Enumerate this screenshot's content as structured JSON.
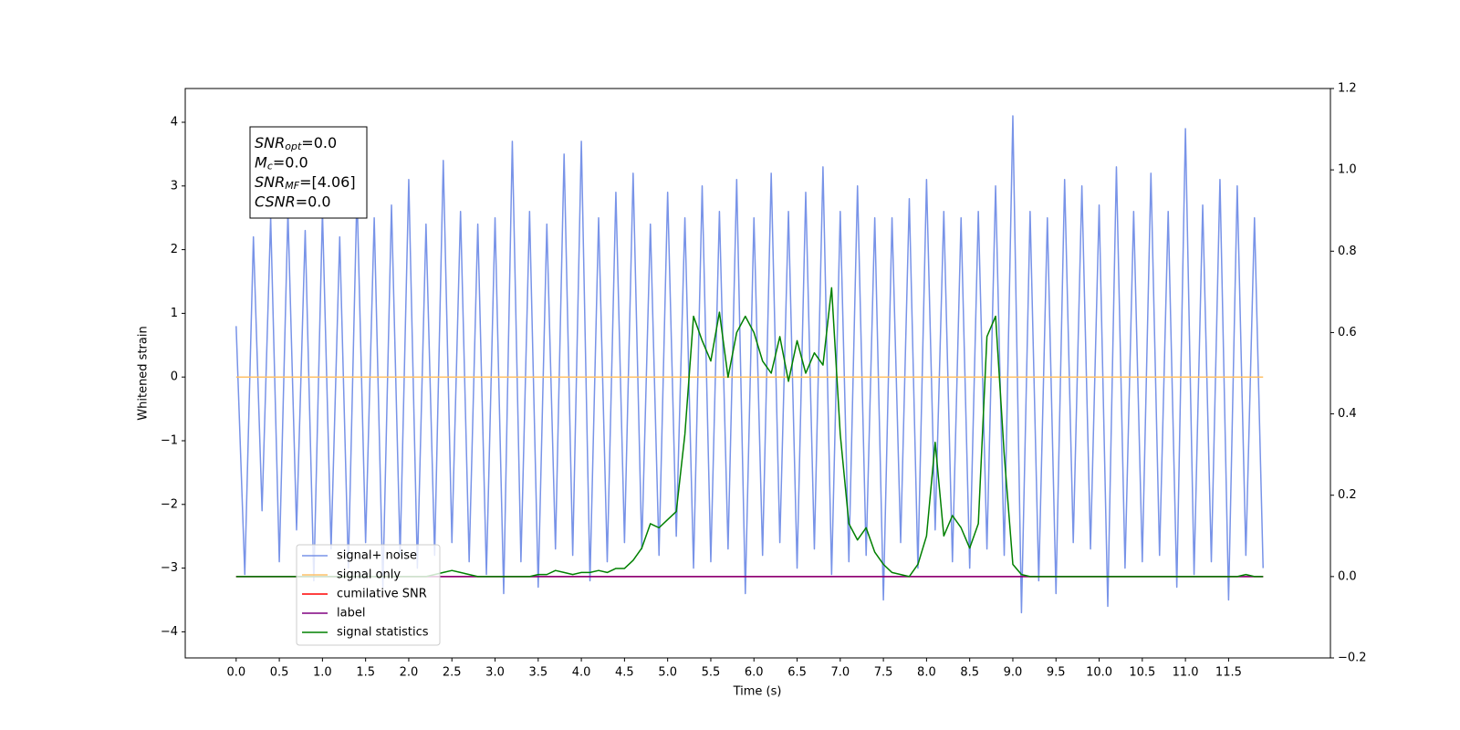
{
  "chart_data": {
    "type": "line",
    "xlabel": "Time (s)",
    "ylabel": "Whitened strain",
    "xlim": [
      -0.59,
      12.68
    ],
    "ylim": [
      -4.41,
      4.53
    ],
    "y2lim": [
      -0.2,
      1.2
    ],
    "xticks": [
      {
        "value": 0,
        "label": "0.0"
      },
      0.5,
      {
        "value": 1,
        "label": "1.0"
      },
      1.5,
      {
        "value": 2,
        "label": "2.0"
      },
      2.5,
      {
        "value": 3,
        "label": "3.0"
      },
      3.5,
      {
        "value": 4,
        "label": "4.0"
      },
      4.5,
      {
        "value": 5,
        "label": "5.0"
      },
      5.5,
      {
        "value": 6,
        "label": "6.0"
      },
      6.5,
      {
        "value": 7,
        "label": "7.0"
      },
      7.5,
      {
        "value": 8,
        "label": "8.0"
      },
      8.5,
      {
        "value": 9,
        "label": "9.0"
      },
      9.5,
      {
        "value": 10,
        "label": "10.0"
      },
      10.5,
      {
        "value": 11,
        "label": "11.0"
      },
      11.5
    ],
    "yticks": [
      {
        "value": -4,
        "label": "−4"
      },
      {
        "value": -3,
        "label": "−3"
      },
      {
        "value": -2,
        "label": "−2"
      },
      {
        "value": -1,
        "label": "−1"
      },
      0,
      1,
      2,
      3,
      4
    ],
    "y2ticks": [
      {
        "value": -0.2,
        "label": "−0.2"
      },
      {
        "value": 0,
        "label": "0.0"
      },
      0.2,
      0.4,
      0.6,
      0.8,
      {
        "value": 1,
        "label": "1.0"
      },
      1.2
    ],
    "legend": "lower left",
    "annotation": [
      {
        "symbol": "SNR",
        "subscript": "opt",
        "text": "=0.0"
      },
      {
        "symbol": "M",
        "subscript": "c",
        "text": "=0.0"
      },
      {
        "symbol": "SNR",
        "subscript": "MF",
        "text": "=[4.06]"
      },
      {
        "symbol": "CSNR",
        "text": "=0.0"
      }
    ],
    "x": [
      0.0,
      0.1,
      0.2,
      0.3,
      0.4,
      0.5,
      0.6,
      0.7,
      0.8,
      0.9,
      1.0,
      1.1,
      1.2,
      1.3,
      1.4,
      1.5,
      1.6,
      1.7,
      1.8,
      1.9,
      2.0,
      2.1,
      2.2,
      2.3,
      2.4,
      2.5,
      2.6,
      2.7,
      2.8,
      2.9,
      3.0,
      3.1,
      3.2,
      3.3,
      3.4,
      3.5,
      3.6,
      3.7,
      3.8,
      3.9,
      4.0,
      4.1,
      4.2,
      4.3,
      4.4,
      4.5,
      4.6,
      4.7,
      4.8,
      4.9,
      5.0,
      5.1,
      5.2,
      5.3,
      5.4,
      5.5,
      5.6,
      5.7,
      5.8,
      5.9,
      6.0,
      6.1,
      6.2,
      6.3,
      6.4,
      6.5,
      6.6,
      6.7,
      6.8,
      6.9,
      7.0,
      7.1,
      7.2,
      7.3,
      7.4,
      7.5,
      7.6,
      7.7,
      7.8,
      7.9,
      8.0,
      8.1,
      8.2,
      8.3,
      8.4,
      8.5,
      8.6,
      8.7,
      8.8,
      8.9,
      9.0,
      9.1,
      9.2,
      9.3,
      9.4,
      9.5,
      9.6,
      9.7,
      9.8,
      9.9,
      10.0,
      10.1,
      10.2,
      10.3,
      10.4,
      10.5,
      10.6,
      10.7,
      10.8,
      10.9,
      11.0,
      11.1,
      11.2,
      11.3,
      11.4,
      11.5,
      11.6,
      11.7,
      11.8,
      11.9
    ],
    "series": [
      {
        "name": "signal+ noise",
        "color": "#7893e8",
        "values": [
          0.8,
          -3.1,
          2.2,
          -2.1,
          2.5,
          -2.9,
          2.6,
          -2.4,
          2.3,
          -3.2,
          2.6,
          -2.7,
          2.2,
          -3.0,
          2.9,
          -2.6,
          2.5,
          -3.3,
          2.7,
          -2.8,
          3.1,
          -3.0,
          2.4,
          -2.8,
          3.4,
          -2.6,
          2.6,
          -2.9,
          2.4,
          -3.1,
          2.5,
          -3.4,
          3.7,
          -2.9,
          2.6,
          -3.3,
          2.4,
          -2.7,
          3.5,
          -2.8,
          3.7,
          -3.2,
          2.5,
          -2.9,
          2.9,
          -2.6,
          3.2,
          -2.7,
          2.4,
          -2.8,
          2.9,
          -2.5,
          2.5,
          -3.0,
          3.0,
          -2.9,
          2.6,
          -2.7,
          3.1,
          -3.4,
          2.5,
          -2.8,
          3.2,
          -2.6,
          2.6,
          -3.0,
          2.9,
          -2.7,
          3.3,
          -3.1,
          2.6,
          -2.9,
          3.0,
          -2.8,
          2.5,
          -3.5,
          2.5,
          -2.6,
          2.8,
          -3.0,
          3.1,
          -2.4,
          2.6,
          -2.9,
          2.5,
          -3.0,
          2.6,
          -2.7,
          3.0,
          -2.8,
          4.1,
          -3.7,
          2.6,
          -3.2,
          2.5,
          -3.4,
          3.1,
          -2.6,
          3.0,
          -2.7,
          2.7,
          -3.6,
          3.3,
          -3.0,
          2.6,
          -2.9,
          3.2,
          -2.8,
          2.6,
          -3.3,
          3.9,
          -3.1,
          2.7,
          -2.9,
          3.1,
          -3.5,
          3.0,
          -2.8,
          2.5,
          -3.0
        ]
      },
      {
        "name": "signal only",
        "color": "#ffc168",
        "values": [
          0,
          0,
          0,
          0,
          0,
          0,
          0,
          0,
          0,
          0,
          0,
          0,
          0,
          0,
          0,
          0,
          0,
          0,
          0,
          0,
          0,
          0,
          0,
          0,
          0,
          0,
          0,
          0,
          0,
          0,
          0,
          0,
          0,
          0,
          0,
          0,
          0,
          0,
          0,
          0,
          0,
          0,
          0,
          0,
          0,
          0,
          0,
          0,
          0,
          0,
          0,
          0,
          0,
          0,
          0,
          0,
          0,
          0,
          0,
          0,
          0,
          0,
          0,
          0,
          0,
          0,
          0,
          0,
          0,
          0,
          0,
          0,
          0,
          0,
          0,
          0,
          0,
          0,
          0,
          0,
          0,
          0,
          0,
          0,
          0,
          0,
          0,
          0,
          0,
          0,
          0,
          0,
          0,
          0,
          0,
          0,
          0,
          0,
          0,
          0,
          0,
          0,
          0,
          0,
          0,
          0,
          0,
          0,
          0,
          0,
          0,
          0,
          0,
          0,
          0,
          0,
          0,
          0,
          0,
          0
        ]
      },
      {
        "name": "cumilative SNR",
        "color": "#ff0000",
        "axis": "y2",
        "values": [
          0,
          0,
          0,
          0,
          0,
          0,
          0,
          0,
          0,
          0,
          0,
          0,
          0,
          0,
          0,
          0,
          0,
          0,
          0,
          0,
          0,
          0,
          0,
          0,
          0,
          0,
          0,
          0,
          0,
          0,
          0,
          0,
          0,
          0,
          0,
          0,
          0,
          0,
          0,
          0,
          0,
          0,
          0,
          0,
          0,
          0,
          0,
          0,
          0,
          0,
          0,
          0,
          0,
          0,
          0,
          0,
          0,
          0,
          0,
          0,
          0,
          0,
          0,
          0,
          0,
          0,
          0,
          0,
          0,
          0,
          0,
          0,
          0,
          0,
          0,
          0,
          0,
          0,
          0,
          0,
          0,
          0,
          0,
          0,
          0,
          0,
          0,
          0,
          0,
          0,
          0,
          0,
          0,
          0,
          0,
          0,
          0,
          0,
          0,
          0,
          0,
          0,
          0,
          0,
          0,
          0,
          0,
          0,
          0,
          0,
          0,
          0,
          0,
          0,
          0,
          0,
          0,
          0,
          0,
          0
        ]
      },
      {
        "name": "label",
        "color": "#800080",
        "axis": "y2",
        "values": [
          0,
          0,
          0,
          0,
          0,
          0,
          0,
          0,
          0,
          0,
          0,
          0,
          0,
          0,
          0,
          0,
          0,
          0,
          0,
          0,
          0,
          0,
          0,
          0,
          0,
          0,
          0,
          0,
          0,
          0,
          0,
          0,
          0,
          0,
          0,
          0,
          0,
          0,
          0,
          0,
          0,
          0,
          0,
          0,
          0,
          0,
          0,
          0,
          0,
          0,
          0,
          0,
          0,
          0,
          0,
          0,
          0,
          0,
          0,
          0,
          0,
          0,
          0,
          0,
          0,
          0,
          0,
          0,
          0,
          0,
          0,
          0,
          0,
          0,
          0,
          0,
          0,
          0,
          0,
          0,
          0,
          0,
          0,
          0,
          0,
          0,
          0,
          0,
          0,
          0,
          0,
          0,
          0,
          0,
          0,
          0,
          0,
          0,
          0,
          0,
          0,
          0,
          0,
          0,
          0,
          0,
          0,
          0,
          0,
          0,
          0,
          0,
          0,
          0,
          0,
          0,
          0,
          0,
          0,
          0
        ]
      },
      {
        "name": "signal statistics",
        "color": "#008000",
        "axis": "y2",
        "values": [
          0,
          0,
          0,
          0,
          0,
          0,
          0,
          0,
          0,
          0,
          0,
          0,
          0,
          0,
          0,
          0,
          0,
          0,
          0,
          0,
          0,
          0,
          0,
          0.005,
          0.01,
          0.015,
          0.01,
          0.005,
          0,
          0,
          0,
          0,
          0,
          0,
          0,
          0.005,
          0.005,
          0.015,
          0.01,
          0.005,
          0.01,
          0.01,
          0.015,
          0.01,
          0.02,
          0.02,
          0.04,
          0.07,
          0.13,
          0.12,
          0.14,
          0.16,
          0.35,
          0.64,
          0.58,
          0.53,
          0.65,
          0.49,
          0.6,
          0.64,
          0.6,
          0.53,
          0.5,
          0.59,
          0.48,
          0.58,
          0.5,
          0.55,
          0.52,
          0.71,
          0.35,
          0.13,
          0.09,
          0.12,
          0.06,
          0.03,
          0.01,
          0.005,
          0,
          0.03,
          0.1,
          0.33,
          0.1,
          0.15,
          0.12,
          0.07,
          0.13,
          0.59,
          0.64,
          0.3,
          0.03,
          0.005,
          0,
          0,
          0,
          0,
          0,
          0,
          0,
          0,
          0,
          0,
          0,
          0,
          0,
          0,
          0,
          0,
          0,
          0,
          0,
          0,
          0,
          0,
          0,
          0,
          0,
          0.005,
          0,
          0
        ]
      }
    ]
  }
}
